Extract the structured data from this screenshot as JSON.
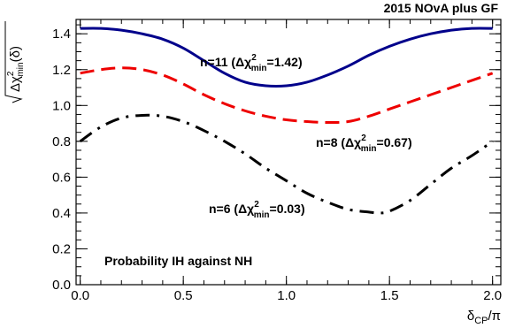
{
  "chart_data": {
    "type": "line",
    "title": "2015 NOvA plus GF",
    "annotation": "Probability IH against NH",
    "xlabel": "δ_CP/π",
    "ylabel": "√(Δχ²_min(δ))",
    "xlim": [
      -0.02,
      2.04
    ],
    "ylim": [
      0.0,
      1.48
    ],
    "xticks": [
      "0.0",
      "0.5",
      "1.0",
      "1.5",
      "2.0"
    ],
    "yticks": [
      "0.0",
      "0.2",
      "0.4",
      "0.6",
      "0.8",
      "1.0",
      "1.2",
      "1.4"
    ],
    "grid": false,
    "series": [
      {
        "name": "n=11 (Δχ²min=1.42)",
        "color": "#00008b",
        "style": "solid",
        "x": [
          0.0,
          0.1,
          0.2,
          0.3,
          0.4,
          0.5,
          0.6,
          0.7,
          0.8,
          0.9,
          1.0,
          1.1,
          1.2,
          1.3,
          1.4,
          1.5,
          1.6,
          1.7,
          1.8,
          1.9,
          2.0
        ],
        "y": [
          1.43,
          1.43,
          1.42,
          1.4,
          1.37,
          1.32,
          1.25,
          1.18,
          1.13,
          1.11,
          1.11,
          1.13,
          1.17,
          1.22,
          1.28,
          1.33,
          1.37,
          1.4,
          1.42,
          1.43,
          1.43
        ]
      },
      {
        "name": "n=8 (Δχ²min=0.67)",
        "color": "#ee0000",
        "style": "dashed",
        "x": [
          0.0,
          0.1,
          0.2,
          0.3,
          0.4,
          0.5,
          0.6,
          0.7,
          0.8,
          0.9,
          1.0,
          1.1,
          1.2,
          1.3,
          1.4,
          1.5,
          1.6,
          1.7,
          1.8,
          1.9,
          2.0
        ],
        "y": [
          1.18,
          1.2,
          1.21,
          1.2,
          1.17,
          1.12,
          1.06,
          1.01,
          0.97,
          0.94,
          0.92,
          0.91,
          0.905,
          0.91,
          0.94,
          0.98,
          1.02,
          1.06,
          1.1,
          1.14,
          1.18
        ]
      },
      {
        "name": "n=6 (Δχ²min=0.03)",
        "color": "#000000",
        "style": "dashdot",
        "x": [
          0.0,
          0.1,
          0.2,
          0.3,
          0.4,
          0.5,
          0.6,
          0.7,
          0.8,
          0.9,
          1.0,
          1.1,
          1.2,
          1.3,
          1.4,
          1.45,
          1.5,
          1.6,
          1.7,
          1.8,
          1.9,
          2.0
        ],
        "y": [
          0.8,
          0.88,
          0.93,
          0.945,
          0.94,
          0.91,
          0.86,
          0.8,
          0.73,
          0.65,
          0.58,
          0.51,
          0.46,
          0.42,
          0.405,
          0.4,
          0.41,
          0.47,
          0.56,
          0.65,
          0.72,
          0.8
        ]
      }
    ]
  }
}
